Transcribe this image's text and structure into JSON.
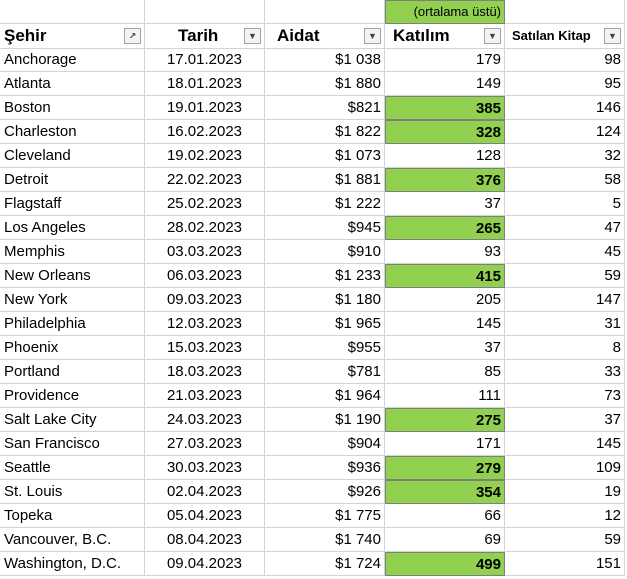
{
  "note": "(ortalama üstü)",
  "headers": {
    "city": "Şehir",
    "date": "Tarih",
    "fee": "Aidat",
    "attendance": "Katılım",
    "books": "Satılan Kitap"
  },
  "highlight_color": "#92d050",
  "icons": {
    "sort_filter": "sort-filter-icon",
    "dropdown": "dropdown-arrow-icon"
  },
  "rows": [
    {
      "city": "Anchorage",
      "date": "17.01.2023",
      "fee": "$1 038",
      "attendance": "179",
      "books": "98",
      "above_avg": false
    },
    {
      "city": "Atlanta",
      "date": "18.01.2023",
      "fee": "$1 880",
      "attendance": "149",
      "books": "95",
      "above_avg": false
    },
    {
      "city": "Boston",
      "date": "19.01.2023",
      "fee": "$821",
      "attendance": "385",
      "books": "146",
      "above_avg": true
    },
    {
      "city": "Charleston",
      "date": "16.02.2023",
      "fee": "$1 822",
      "attendance": "328",
      "books": "124",
      "above_avg": true
    },
    {
      "city": "Cleveland",
      "date": "19.02.2023",
      "fee": "$1 073",
      "attendance": "128",
      "books": "32",
      "above_avg": false
    },
    {
      "city": "Detroit",
      "date": "22.02.2023",
      "fee": "$1 881",
      "attendance": "376",
      "books": "58",
      "above_avg": true
    },
    {
      "city": "Flagstaff",
      "date": "25.02.2023",
      "fee": "$1 222",
      "attendance": "37",
      "books": "5",
      "above_avg": false
    },
    {
      "city": "Los Angeles",
      "date": "28.02.2023",
      "fee": "$945",
      "attendance": "265",
      "books": "47",
      "above_avg": true
    },
    {
      "city": "Memphis",
      "date": "03.03.2023",
      "fee": "$910",
      "attendance": "93",
      "books": "45",
      "above_avg": false
    },
    {
      "city": "New Orleans",
      "date": "06.03.2023",
      "fee": "$1 233",
      "attendance": "415",
      "books": "59",
      "above_avg": true
    },
    {
      "city": "New York",
      "date": "09.03.2023",
      "fee": "$1 180",
      "attendance": "205",
      "books": "147",
      "above_avg": false
    },
    {
      "city": "Philadelphia",
      "date": "12.03.2023",
      "fee": "$1 965",
      "attendance": "145",
      "books": "31",
      "above_avg": false
    },
    {
      "city": "Phoenix",
      "date": "15.03.2023",
      "fee": "$955",
      "attendance": "37",
      "books": "8",
      "above_avg": false
    },
    {
      "city": "Portland",
      "date": "18.03.2023",
      "fee": "$781",
      "attendance": "85",
      "books": "33",
      "above_avg": false
    },
    {
      "city": "Providence",
      "date": "21.03.2023",
      "fee": "$1 964",
      "attendance": "111",
      "books": "73",
      "above_avg": false
    },
    {
      "city": "Salt Lake City",
      "date": "24.03.2023",
      "fee": "$1 190",
      "attendance": "275",
      "books": "37",
      "above_avg": true
    },
    {
      "city": "San Francisco",
      "date": "27.03.2023",
      "fee": "$904",
      "attendance": "171",
      "books": "145",
      "above_avg": false
    },
    {
      "city": "Seattle",
      "date": "30.03.2023",
      "fee": "$936",
      "attendance": "279",
      "books": "109",
      "above_avg": true
    },
    {
      "city": "St. Louis",
      "date": "02.04.2023",
      "fee": "$926",
      "attendance": "354",
      "books": "19",
      "above_avg": true
    },
    {
      "city": "Topeka",
      "date": "05.04.2023",
      "fee": "$1 775",
      "attendance": "66",
      "books": "12",
      "above_avg": false
    },
    {
      "city": "Vancouver, B.C.",
      "date": "08.04.2023",
      "fee": "$1 740",
      "attendance": "69",
      "books": "59",
      "above_avg": false
    },
    {
      "city": "Washington, D.C.",
      "date": "09.04.2023",
      "fee": "$1 724",
      "attendance": "499",
      "books": "151",
      "above_avg": true
    }
  ]
}
